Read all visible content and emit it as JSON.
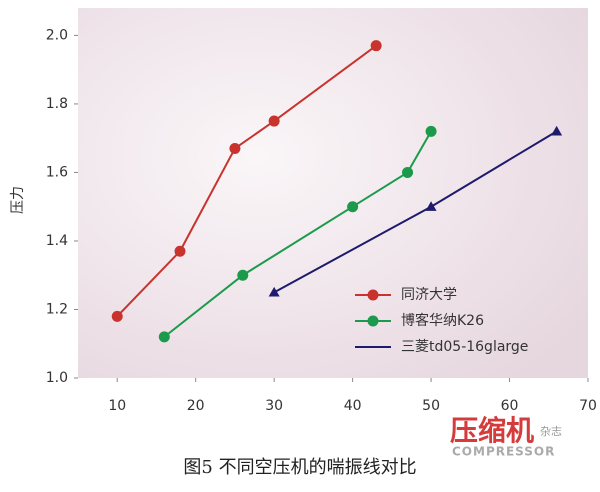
{
  "chart_data": {
    "type": "line",
    "ylabel": "压力",
    "caption": "图5 不同空压机的喘振线对比",
    "watermark": {
      "text": "压缩机",
      "sub": "COMPRESSOR",
      "tag": "杂志"
    },
    "xlim": [
      5,
      70
    ],
    "xticks": [
      10,
      20,
      30,
      40,
      50,
      60,
      70
    ],
    "ylim": [
      1.0,
      2.08
    ],
    "yticks": [
      {
        "value": 1.0,
        "label": "1.0"
      },
      {
        "value": 1.2,
        "label": "1.2"
      },
      {
        "value": 1.4,
        "label": "1.4"
      },
      {
        "value": 1.6,
        "label": "1.6"
      },
      {
        "value": 1.8,
        "label": "1.8"
      },
      {
        "value": 2.0,
        "label": "2.0"
      }
    ],
    "legend": "lower right",
    "series": [
      {
        "name": "同济大学",
        "color": "#c8332e",
        "marker": "circle",
        "x": [
          10,
          18,
          25,
          30,
          43
        ],
        "values": [
          1.18,
          1.37,
          1.67,
          1.75,
          1.97
        ]
      },
      {
        "name": "博客华纳K26",
        "color": "#1a9a4a",
        "marker": "circle",
        "x": [
          16,
          26,
          40,
          47,
          50
        ],
        "values": [
          1.12,
          1.3,
          1.5,
          1.6,
          1.72
        ]
      },
      {
        "name": "三菱td05-16glarge",
        "color": "#1e1a6e",
        "marker": "triangle",
        "x": [
          30,
          50,
          66
        ],
        "values": [
          1.25,
          1.5,
          1.72
        ]
      }
    ]
  }
}
